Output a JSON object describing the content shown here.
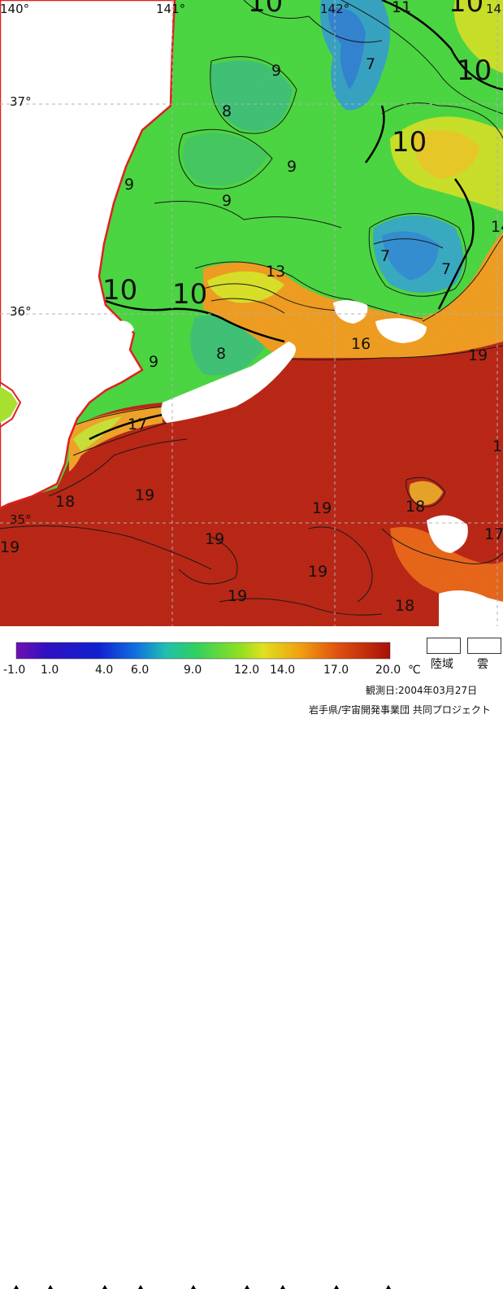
{
  "map": {
    "lon_labels": [
      "140°",
      "141°",
      "142°",
      "14"
    ],
    "lat_labels": [
      "37°",
      "36°",
      "35°"
    ],
    "isotherm_labels": [
      "10",
      "11",
      "10",
      "10",
      "7",
      "9",
      "8",
      "10",
      "9",
      "9",
      "9",
      "7",
      "7",
      "14",
      "13",
      "10",
      "10",
      "9",
      "8",
      "16",
      "19",
      "17",
      "19",
      "18",
      "19",
      "19",
      "18",
      "19",
      "19",
      "19",
      "18",
      "17",
      "19",
      "18"
    ]
  },
  "colorbar": {
    "tick_labels": [
      "-1.0",
      "1.0",
      "4.0",
      "6.0",
      "9.0",
      "12.0",
      "14.0",
      "17.0",
      "20.0"
    ],
    "unit": "℃",
    "colors": [
      "#7010b0",
      "#2020d0",
      "#2070e0",
      "#20b0d0",
      "#30d060",
      "#60e020",
      "#e0e020",
      "#f09010",
      "#e06010",
      "#a81008"
    ]
  },
  "key": {
    "land_label": "陸域",
    "cloud_label": "雲"
  },
  "footer": {
    "observation_date": "観測日:2004年03月27日",
    "credit": "岩手県/宇宙開発事業団 共同プロジェクト"
  },
  "colors": {
    "coastline": "#e02020",
    "land": "#ffffff",
    "cloud": "#ffffff",
    "grid": "#b0b0b0"
  }
}
